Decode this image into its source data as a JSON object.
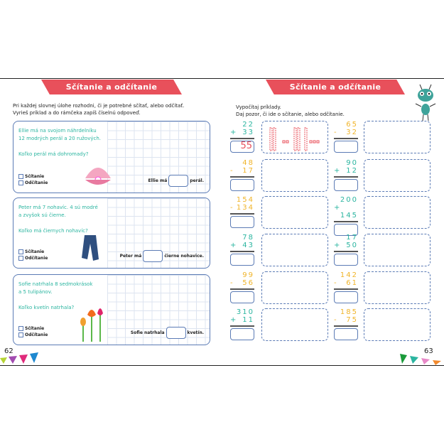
{
  "left": {
    "title": "Sčítanie a odčítanie",
    "instructions": [
      "Pri každej slovnej úlohe rozhodni, či je potrebné sčítať, alebo odčítať.",
      "Vyrieš príklad a do rámčeka zapíš číselnú odpoveď."
    ],
    "tasks": [
      {
        "lines": [
          "Ellie má na svojom náhrdelníku",
          "12 modrých perál a 20 ružových."
        ],
        "question": "Koľko perál má dohromady?",
        "answer_prefix": "Ellie má",
        "answer_suffix": "perál.",
        "image": "pearl-shell-icon"
      },
      {
        "lines": [
          "Peter má 7 nohavíc. 4 sú modré",
          "a zvyšok sú čierne."
        ],
        "question": "Koľko má čiernych nohavíc?",
        "answer_prefix": "Peter má",
        "answer_suffix": "čierne nohavice.",
        "image": "trousers-icon"
      },
      {
        "lines": [
          "Sofie natrhala 8 sedmokrások",
          "a 5 tulipánov."
        ],
        "question": "Koľko kvetín natrhala?",
        "answer_prefix": "Sofie natrhala",
        "answer_suffix": "kvetín.",
        "image": "flowers-icon"
      }
    ],
    "option_add": "Sčítanie",
    "option_sub": "Odčítanie",
    "page_number": "62"
  },
  "right": {
    "title": "Sčítanie a odčítanie",
    "instructions": [
      "Vypočítaj príklady.",
      "Daj pozor, či ide o sčítanie, alebo odčítanie."
    ],
    "problems": [
      {
        "a": "22",
        "op": "+",
        "b": "33",
        "result": "55"
      },
      {
        "a": "65",
        "op": "-",
        "b": "32",
        "result": ""
      },
      {
        "a": "48",
        "op": "-",
        "b": "17",
        "result": ""
      },
      {
        "a": "90",
        "op": "+",
        "b": "12",
        "result": ""
      },
      {
        "a": "154",
        "op": "-",
        "b": "134",
        "result": ""
      },
      {
        "a": "200",
        "op": "+",
        "b": "145",
        "result": ""
      },
      {
        "a": "78",
        "op": "+",
        "b": "43",
        "result": ""
      },
      {
        "a": "17",
        "op": "+",
        "b": "50",
        "result": ""
      },
      {
        "a": "99",
        "op": "-",
        "b": "56",
        "result": ""
      },
      {
        "a": "142",
        "op": "-",
        "b": "61",
        "result": ""
      },
      {
        "a": "310",
        "op": "+",
        "b": "11",
        "result": ""
      },
      {
        "a": "185",
        "op": "-",
        "b": "75",
        "result": ""
      }
    ],
    "page_number": "63"
  },
  "colors": {
    "header": "#e8505b",
    "add": "#2bb5a0",
    "sub": "#f0b429",
    "border": "#5b7bb5"
  }
}
